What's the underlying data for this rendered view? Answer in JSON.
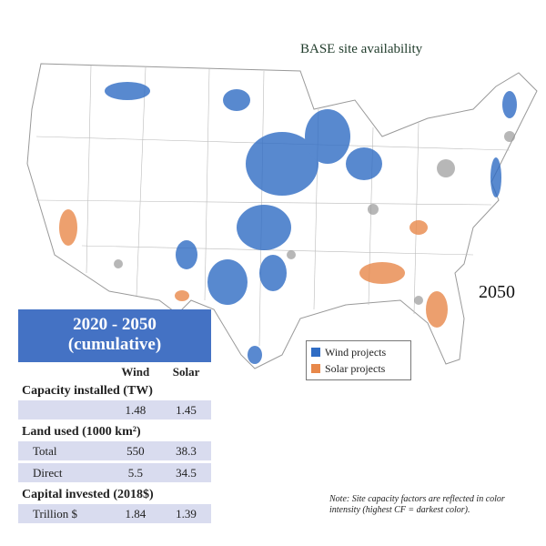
{
  "map": {
    "title": "BASE site availability",
    "year": "2050",
    "legend": [
      {
        "label": "Wind projects",
        "color": "#2f6cc4"
      },
      {
        "label": "Solar projects",
        "color": "#e8884a"
      }
    ],
    "note": "Note: Site capacity factors are reflected in color intensity (highest CF = darkest color)."
  },
  "table": {
    "title_lines": [
      "2020 - 2050",
      "(cumulative)"
    ],
    "columns": [
      "Wind",
      "Solar"
    ],
    "sections": [
      {
        "heading": "Capacity installed (TW)",
        "rows": [
          {
            "values": [
              1.48,
              1.45
            ]
          }
        ]
      },
      {
        "heading": "Land used (1000 km²)",
        "rows": [
          {
            "label": "Total",
            "values": [
              550,
              38.3
            ]
          },
          {
            "label": "Direct",
            "values": [
              5.5,
              34.5
            ]
          }
        ]
      },
      {
        "heading": "Capital invested (2018$)",
        "rows": [
          {
            "label": "Trillion $",
            "values": [
              1.84,
              1.39
            ]
          }
        ]
      }
    ]
  }
}
